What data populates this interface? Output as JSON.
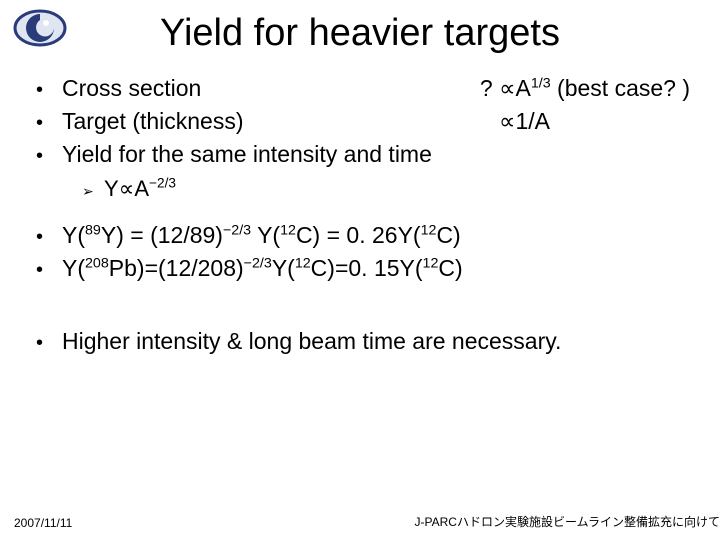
{
  "logo": {
    "outer_stroke": "#2a3b7a",
    "outer_fill": "#dfe6f2",
    "inner_fill": "#2a3b7a",
    "highlight": "#ffffff"
  },
  "title": "Yield for heavier targets",
  "bullets_top": [
    {
      "label": "Cross section",
      "rhs_html": "? &prop;A<sup>1/3</sup> (best case? )"
    },
    {
      "label": "Target (thickness)",
      "rhs_html": "&prop;1/A"
    },
    {
      "label": "Yield for the same intensity and time",
      "rhs_html": ""
    }
  ],
  "sub_bullet_html": "Y&prop;A<sup>&minus;2/3</sup>",
  "bullets_mid_html": [
    "Y(<sup>89</sup>Y) = (12/89)<sup>&minus;2/3</sup> Y(<sup>12</sup>C) = 0. 26Y(<sup>12</sup>C)",
    "Y(<sup>208</sup>Pb)=(12/208)<sup>&minus;2/3</sup>Y(<sup>12</sup>C)=0. 15Y(<sup>12</sup>C)"
  ],
  "bullet_last": "Higher intensity & long beam time are necessary.",
  "footer": {
    "left": "2007/11/11",
    "right": "J-PARCハドロン実験施設ビームライン整備拡充に向けて"
  }
}
